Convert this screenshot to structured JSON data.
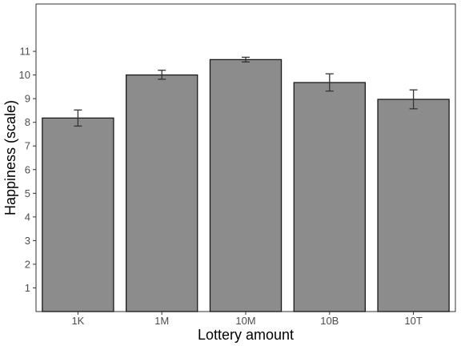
{
  "chart_data": {
    "type": "bar",
    "title": "",
    "xlabel": "Lottery amount",
    "ylabel": "Happiness (scale)",
    "categories": [
      "1K",
      "1M",
      "10M",
      "10B",
      "10T"
    ],
    "values": [
      8.18,
      10.0,
      10.65,
      9.68,
      8.97
    ],
    "error_low": [
      7.84,
      9.82,
      10.55,
      9.32,
      8.57
    ],
    "error_high": [
      8.52,
      10.2,
      10.75,
      10.05,
      9.37
    ],
    "yticks": [
      1,
      2,
      3,
      4,
      5,
      6,
      7,
      8,
      9,
      10,
      11
    ],
    "ylim": [
      0,
      13
    ],
    "grid": false,
    "bar_color": "#8c8c8c",
    "bar_stroke": "#1a1a1a",
    "error_color": "#333333"
  }
}
